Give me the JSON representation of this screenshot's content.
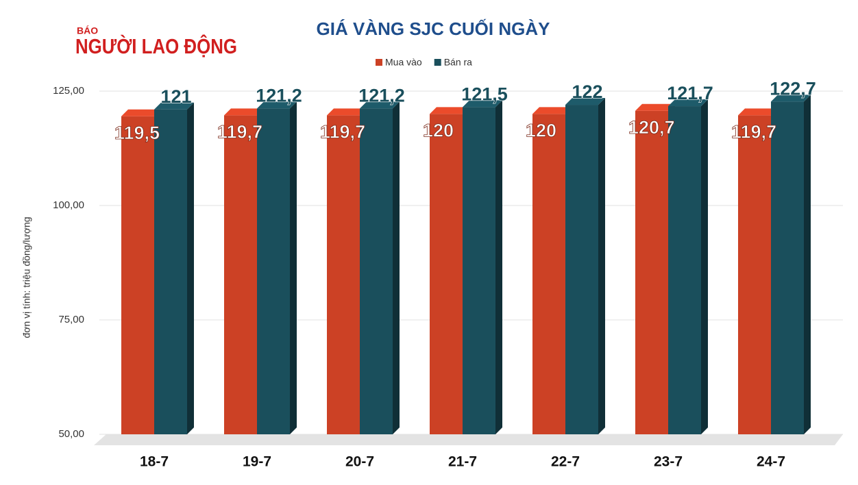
{
  "logo": {
    "small": "BÁO",
    "name": "NGƯỜI LAO ĐỘNG"
  },
  "chart_data": {
    "type": "bar3d",
    "title": "GIÁ VÀNG SJC CUỐI NGÀY",
    "y_label": "đơn vị tính: triệu đồng/lượng",
    "categories": [
      "18-7",
      "19-7",
      "20-7",
      "21-7",
      "22-7",
      "23-7",
      "24-7"
    ],
    "series": [
      {
        "name": "Mua vào",
        "color": "#cc4125",
        "values": [
          119.5,
          119.7,
          119.7,
          120,
          120,
          120.7,
          119.7
        ],
        "value_labels": [
          "119,5",
          "119,7",
          "119,7",
          "120",
          "120",
          "120,7",
          "119,7"
        ]
      },
      {
        "name": "Bán ra",
        "color": "#1a4f5c",
        "values": [
          121,
          121.2,
          121.2,
          121.5,
          122,
          121.7,
          122.7
        ],
        "value_labels": [
          "121",
          "121,2",
          "121,2",
          "121,5",
          "122",
          "121,7",
          "122,7"
        ]
      }
    ],
    "ylim": [
      50,
      125
    ],
    "yticks": [
      {
        "value": 50,
        "label": "50,00"
      },
      {
        "value": 75,
        "label": "75,00"
      },
      {
        "value": 100,
        "label": "100,00"
      },
      {
        "value": 125,
        "label": "125,00"
      }
    ],
    "grid": true,
    "legend": "top"
  }
}
